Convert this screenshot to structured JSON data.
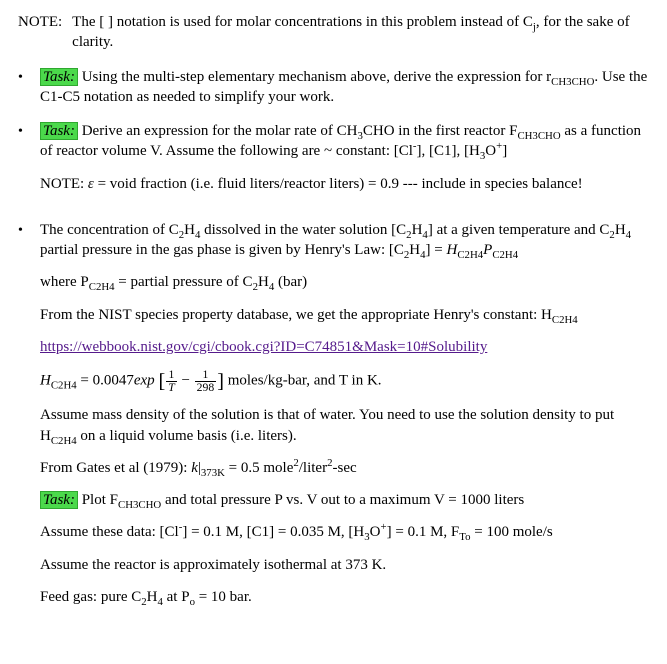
{
  "note": {
    "label": "NOTE:",
    "text_a": "The [ ] notation is used for molar concentrations in this problem instead of C",
    "sub_j": "j",
    "text_b": ", for the sake of clarity."
  },
  "b1": {
    "task_label": "Task:",
    "text_a": "Using the multi-step elementary mechanism above, derive the expression for r",
    "sub1": "CH3CHO",
    "text_b": ". Use the C1-C5 notation as needed to simplify your work."
  },
  "b2": {
    "task_label": "Task:",
    "text_a": "Derive an expression for the molar rate of CH",
    "s3": "3",
    "text_b": "CHO in the first reactor F",
    "sub1": "CH3CHO",
    "text_c": " as a function of reactor volume V.  Assume the following are ~ constant:  [Cl",
    "sup_minus": "-",
    "text_d": "], [C1], [H",
    "s3b": "3",
    "text_e": "O",
    "sup_plus": "+",
    "text_f": "]",
    "note_label": "NOTE:",
    "eps": "ε",
    "note_eq": " = void fraction (i.e. fluid liters/reactor liters) = 0.9 --- include in species balance!"
  },
  "b3": {
    "p1_a": "The concentration of C",
    "s2": "2",
    "p1_b": "H",
    "s4": "4",
    "p1_c": " dissolved in the water solution [C",
    "p1_d": "] at a given temperature and C",
    "p1_e": " partial pressure in the gas phase is given by Henry's Law:  [C",
    "p1_f": "] = ",
    "H": "H",
    "sub_c2h4": "C2H4",
    "P": "P",
    "where_a": "where P",
    "where_b": " = partial pressure of C",
    "where_c": " (bar)",
    "nist_a": "From the NIST species property database, we get the appropriate Henry's constant:  H",
    "link": "https://webbook.nist.gov/cgi/cbook.cgi?ID=C74851&Mask=10#Solubility",
    "heq_a": " = 0.0047",
    "exp": "exp",
    "frac1_num": "1",
    "frac1_den": "T",
    "minus": " − ",
    "frac2_num": "1",
    "frac2_den": "298",
    "heq_units": "    moles/kg-bar, and T in K.",
    "dens": "Assume mass density of the solution is that of water.  You need to use the solution density to put H",
    "dens_b": " on a liquid volume basis (i.e. liters).",
    "gates_a": "From Gates et al (1979):  ",
    "k": "k",
    "bar373": "373K",
    "gates_eq": " = 0.5 mole",
    "sq2": "2",
    "gates_c": "/liter",
    "gates_d": "-sec",
    "task_label": "Task:",
    "task_a": "Plot F",
    "task_sub": "CH3CHO",
    "task_b": " and total pressure P vs. V out to a maximum V = 1000 liters",
    "data_a": "Assume these data:  [Cl",
    "sup_minus": "-",
    "data_b": "] = 0.1 M, [C1] = 0.035 M, [H",
    "s3": "3",
    "data_c": "O",
    "sup_plus": "+",
    "data_d": "] = 0.1 M, F",
    "sub_To": "To",
    "data_e": " = 100 mole/s",
    "iso": "Assume the reactor is approximately isothermal at 373 K.",
    "feed_a": "Feed gas:  pure C",
    "feed_b": " at P",
    "sub_o": "o",
    "feed_c": " = 10 bar."
  }
}
